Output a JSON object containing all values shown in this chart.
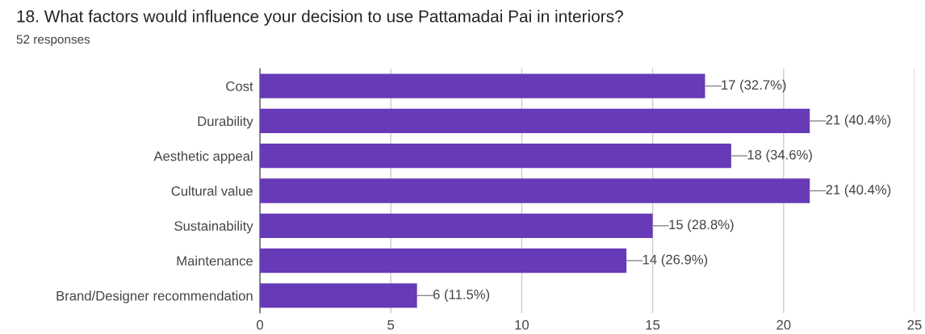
{
  "chart_data": {
    "type": "bar",
    "orientation": "horizontal",
    "title": "18. What factors would influence your decision to use Pattamadai Pai in interiors?",
    "subtitle": "52 responses",
    "categories": [
      "Cost",
      "Durability",
      "Aesthetic appeal",
      "Cultural value",
      "Sustainability",
      "Maintenance",
      "Brand/Designer recommendation"
    ],
    "values": [
      17,
      21,
      18,
      21,
      15,
      14,
      6
    ],
    "value_labels": [
      "17 (32.7%)",
      "21 (40.4%)",
      "18 (34.6%)",
      "21 (40.4%)",
      "15 (28.8%)",
      "14 (26.9%)",
      "6 (11.5%)"
    ],
    "color": "#673ab7",
    "xlim": [
      0,
      25
    ],
    "xticks": [
      0,
      5,
      10,
      15,
      20,
      25
    ],
    "grid": "x",
    "legend": false
  }
}
